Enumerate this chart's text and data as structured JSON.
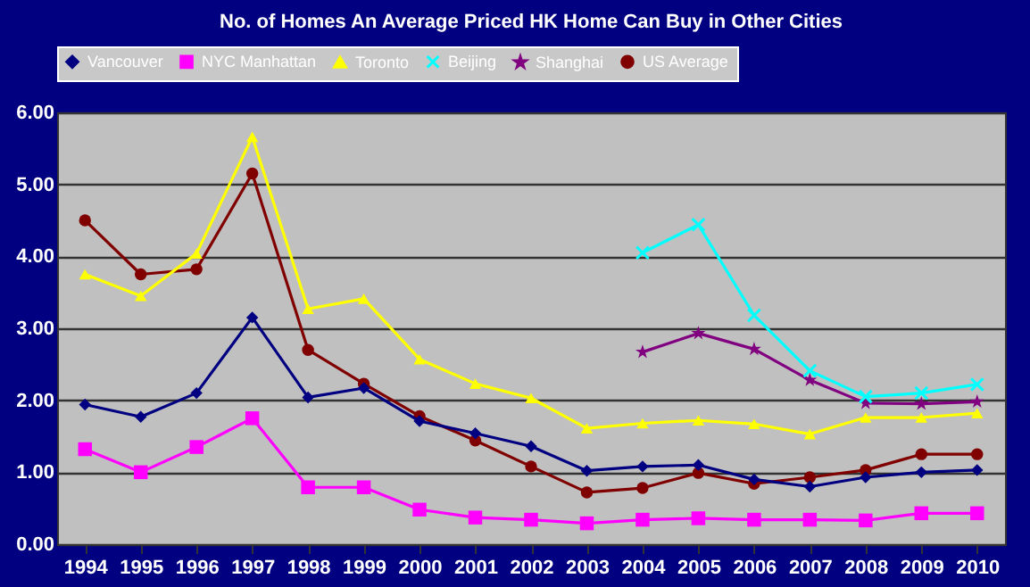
{
  "chart_data": {
    "type": "line",
    "title": "No. of Homes An Average Priced HK Home Can Buy in Other Cities",
    "categories": [
      "1994",
      "1995",
      "1996",
      "1997",
      "1998",
      "1999",
      "2000",
      "2001",
      "2002",
      "2003",
      "2004",
      "2005",
      "2006",
      "2007",
      "2008",
      "2009",
      "2010"
    ],
    "series": [
      {
        "name": "Vancouver",
        "color": "#000080",
        "marker": "diamond",
        "values": [
          1.94,
          1.77,
          2.1,
          3.15,
          2.04,
          2.17,
          1.71,
          1.54,
          1.36,
          1.02,
          1.08,
          1.1,
          0.9,
          0.8,
          0.93,
          1.0,
          1.03
        ]
      },
      {
        "name": "NYC Manhattan",
        "color": "#ff00ff",
        "marker": "square",
        "values": [
          1.32,
          1.0,
          1.35,
          1.75,
          0.79,
          0.79,
          0.48,
          0.37,
          0.34,
          0.29,
          0.34,
          0.36,
          0.34,
          0.34,
          0.33,
          0.43,
          0.43
        ]
      },
      {
        "name": "Toronto",
        "color": "#ffff00",
        "marker": "triangle",
        "values": [
          3.75,
          3.45,
          4.04,
          5.66,
          3.27,
          3.41,
          2.57,
          2.23,
          2.03,
          1.61,
          1.68,
          1.72,
          1.67,
          1.53,
          1.76,
          1.76,
          1.82
        ]
      },
      {
        "name": "Beijing",
        "color": "#00ffff",
        "marker": "cross",
        "values": [
          null,
          null,
          null,
          null,
          null,
          null,
          null,
          null,
          null,
          null,
          4.05,
          4.44,
          3.18,
          2.41,
          2.05,
          2.1,
          2.22
        ]
      },
      {
        "name": "Shanghai",
        "color": "#800080",
        "marker": "star",
        "values": [
          null,
          null,
          null,
          null,
          null,
          null,
          null,
          null,
          null,
          null,
          2.67,
          2.93,
          2.71,
          2.28,
          1.96,
          1.95,
          1.98
        ]
      },
      {
        "name": "US Average",
        "color": "#800000",
        "marker": "circle",
        "values": [
          4.5,
          3.75,
          3.82,
          5.15,
          2.7,
          2.23,
          1.78,
          1.44,
          1.08,
          0.72,
          0.78,
          0.99,
          0.84,
          0.93,
          1.03,
          1.25,
          1.25
        ]
      }
    ],
    "ylim": [
      0,
      6
    ],
    "yticks": [
      {
        "value": 0,
        "label": "0.00"
      },
      {
        "value": 1,
        "label": "1.00"
      },
      {
        "value": 2,
        "label": "2.00"
      },
      {
        "value": 3,
        "label": "3.00"
      },
      {
        "value": 4,
        "label": "4.00"
      },
      {
        "value": 5,
        "label": "5.00"
      },
      {
        "value": 6,
        "label": "6.00"
      }
    ],
    "grid": "y",
    "legend": "top"
  }
}
